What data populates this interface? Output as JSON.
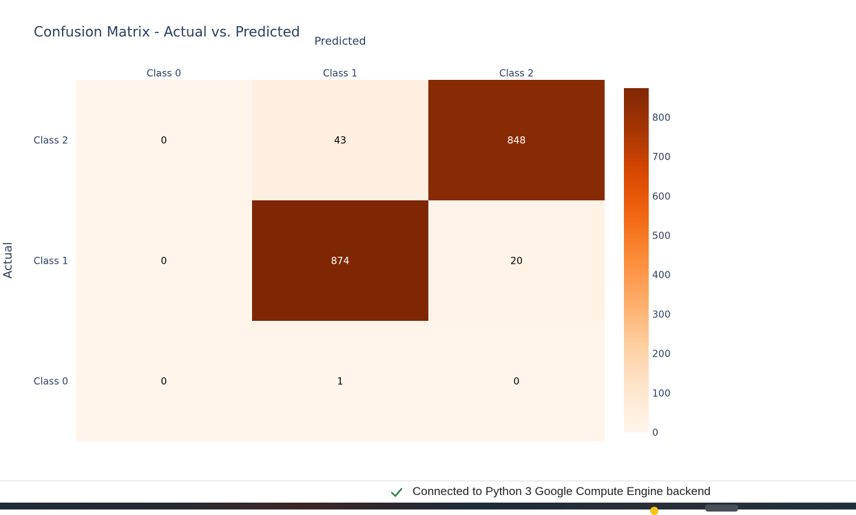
{
  "chart_data": {
    "type": "heatmap",
    "title": "Confusion Matrix - Actual vs. Predicted",
    "xlabel": "Predicted",
    "ylabel": "Actual",
    "x_categories": [
      "Class 0",
      "Class 1",
      "Class 2"
    ],
    "y_categories": [
      "Class 0",
      "Class 1",
      "Class 2"
    ],
    "y_order_top_to_bottom": [
      "Class 2",
      "Class 1",
      "Class 0"
    ],
    "z": [
      [
        0,
        1,
        0
      ],
      [
        0,
        874,
        20
      ],
      [
        0,
        43,
        848
      ]
    ],
    "colorscale": "Oranges",
    "colorbar": {
      "range": [
        0,
        874
      ],
      "ticks": [
        0,
        100,
        200,
        300,
        400,
        500,
        600,
        700,
        800
      ]
    }
  },
  "status": {
    "icon": "check-icon",
    "text": "Connected to Python 3 Google Compute Engine backend",
    "icon_color": "#188038"
  }
}
